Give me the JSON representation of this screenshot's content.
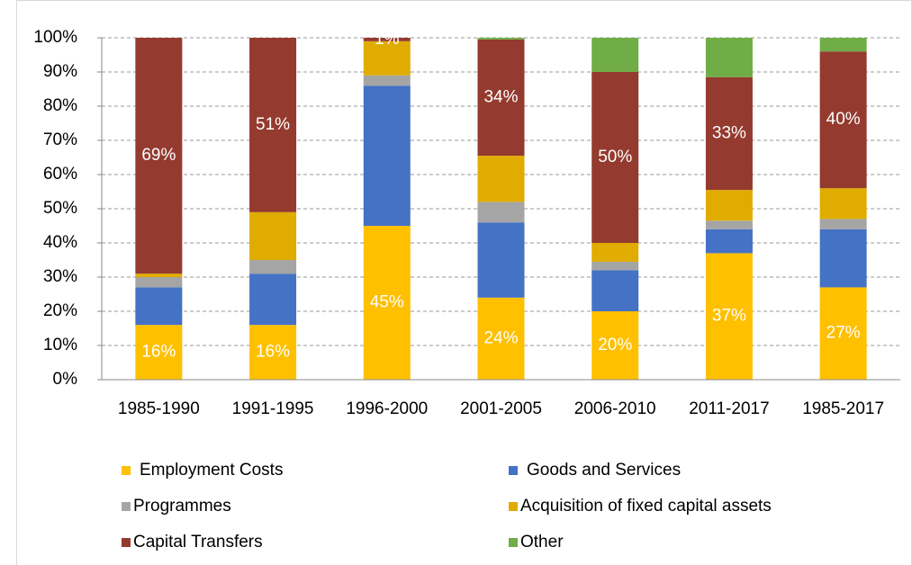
{
  "chart_data": {
    "type": "stacked_bar",
    "categories": [
      "1985-1990",
      "1991-1995",
      "1996-2000",
      "2001-2005",
      "2006-2010",
      "2011-2017",
      "1985-2017"
    ],
    "series": [
      {
        "name": "Employment Costs",
        "color": "#ffc000",
        "values": [
          16,
          16,
          45,
          24,
          20,
          37,
          27
        ],
        "value_labels": [
          "16%",
          "16%",
          "45%",
          "24%",
          "20%",
          "37%",
          "27%"
        ]
      },
      {
        "name": "Goods and Services",
        "color": "#4472c4",
        "values": [
          11,
          15,
          41,
          22,
          12,
          7,
          17
        ]
      },
      {
        "name": "Programmes",
        "color": "#a5a5a5",
        "values": [
          3,
          4,
          3,
          6,
          2.5,
          2.5,
          3
        ]
      },
      {
        "name": "Acquisition of fixed capital assets",
        "color": "#e0ac00",
        "values": [
          1,
          14,
          10,
          13.5,
          5.5,
          9,
          9
        ]
      },
      {
        "name": "Capital Transfers",
        "color": "#943a2f",
        "values": [
          69,
          51,
          1,
          34,
          50,
          33,
          40
        ],
        "value_labels": [
          "69%",
          "51%",
          "1%",
          "34%",
          "50%",
          "33%",
          "40%"
        ]
      },
      {
        "name": "Other",
        "color": "#70ad47",
        "values": [
          0,
          0,
          0,
          0.5,
          10,
          11.5,
          4
        ]
      }
    ],
    "ylim": [
      0,
      100
    ],
    "yticks": [
      {
        "value": 0,
        "label": "0%"
      },
      {
        "value": 10,
        "label": "10%"
      },
      {
        "value": 20,
        "label": "20%"
      },
      {
        "value": 30,
        "label": "30%"
      },
      {
        "value": 40,
        "label": "40%"
      },
      {
        "value": 50,
        "label": "50%"
      },
      {
        "value": 60,
        "label": "60%"
      },
      {
        "value": 70,
        "label": "70%"
      },
      {
        "value": 80,
        "label": "80%"
      },
      {
        "value": 90,
        "label": "90%"
      },
      {
        "value": 100,
        "label": "100%"
      }
    ],
    "grid": true
  }
}
